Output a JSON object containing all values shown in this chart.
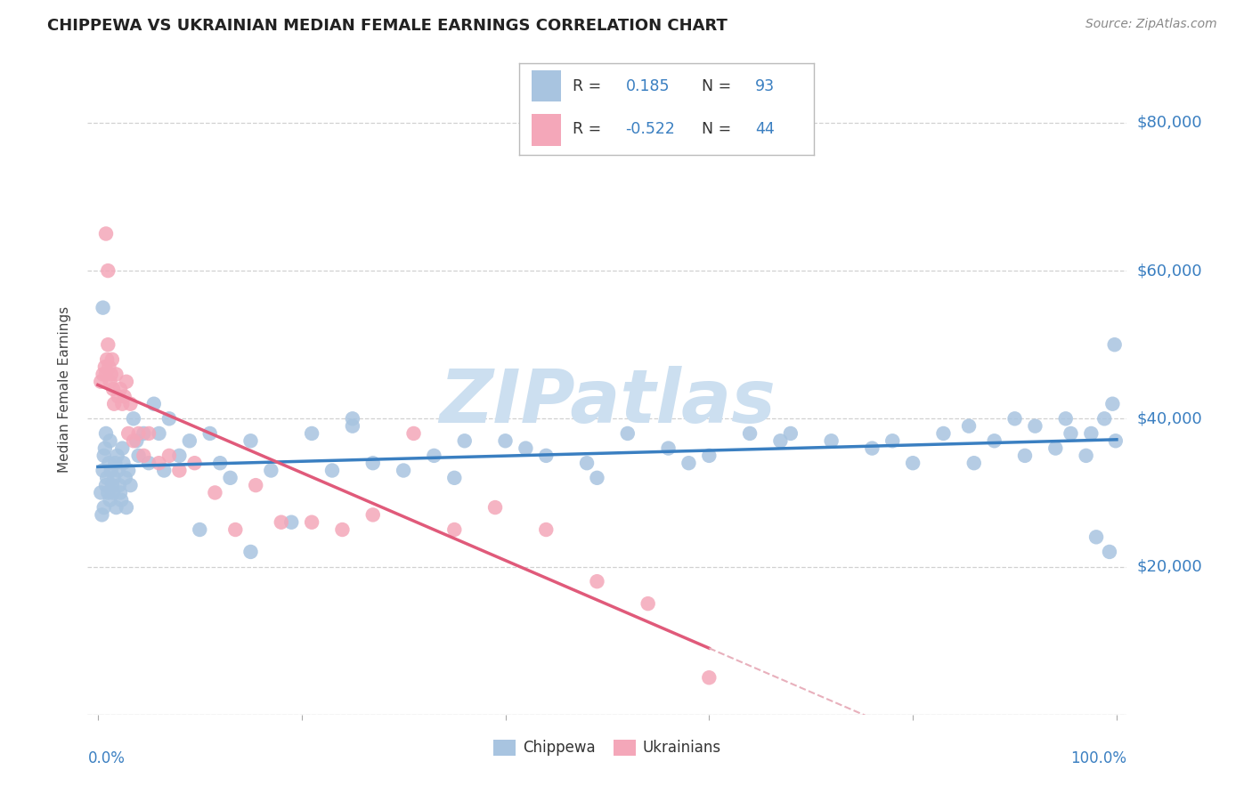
{
  "title": "CHIPPEWA VS UKRAINIAN MEDIAN FEMALE EARNINGS CORRELATION CHART",
  "source": "Source: ZipAtlas.com",
  "ylabel": "Median Female Earnings",
  "y_tick_values": [
    0,
    20000,
    40000,
    60000,
    80000
  ],
  "y_tick_labels": [
    "",
    "$20,000",
    "$40,000",
    "$60,000",
    "$80,000"
  ],
  "xlim": [
    -0.01,
    1.01
  ],
  "ylim": [
    0,
    88000
  ],
  "chippewa_color": "#a8c4e0",
  "ukrainian_color": "#f4a7b9",
  "line_chippewa_color": "#3a7fc1",
  "line_ukrainian_color": "#e05a7a",
  "line_dash_color": "#e8b0bc",
  "grid_color": "#cccccc",
  "watermark_color": "#ccdff0",
  "legend_r1_val": "0.185",
  "legend_n1_val": "93",
  "legend_r2_val": "-0.522",
  "legend_n2_val": "44",
  "r_n_color": "#3a7fc1",
  "chippewa_x": [
    0.003,
    0.004,
    0.005,
    0.006,
    0.006,
    0.007,
    0.008,
    0.008,
    0.009,
    0.01,
    0.011,
    0.012,
    0.012,
    0.013,
    0.014,
    0.015,
    0.016,
    0.017,
    0.018,
    0.019,
    0.02,
    0.021,
    0.022,
    0.023,
    0.024,
    0.025,
    0.027,
    0.028,
    0.03,
    0.032,
    0.035,
    0.038,
    0.04,
    0.045,
    0.05,
    0.055,
    0.06,
    0.065,
    0.07,
    0.08,
    0.09,
    0.1,
    0.11,
    0.12,
    0.13,
    0.15,
    0.17,
    0.19,
    0.21,
    0.23,
    0.25,
    0.27,
    0.3,
    0.33,
    0.36,
    0.4,
    0.44,
    0.48,
    0.52,
    0.56,
    0.6,
    0.64,
    0.68,
    0.72,
    0.76,
    0.8,
    0.83,
    0.86,
    0.88,
    0.9,
    0.92,
    0.94,
    0.955,
    0.97,
    0.98,
    0.988,
    0.993,
    0.996,
    0.998,
    0.999,
    0.35,
    0.42,
    0.49,
    0.25,
    0.15,
    0.58,
    0.67,
    0.78,
    0.855,
    0.91,
    0.95,
    0.975,
    0.005
  ],
  "chippewa_y": [
    30000,
    27000,
    33000,
    35000,
    28000,
    36000,
    31000,
    38000,
    32000,
    30000,
    34000,
    29000,
    37000,
    33000,
    31000,
    30000,
    32000,
    34000,
    28000,
    35000,
    33000,
    31000,
    30000,
    29000,
    36000,
    34000,
    32000,
    28000,
    33000,
    31000,
    40000,
    37000,
    35000,
    38000,
    34000,
    42000,
    38000,
    33000,
    40000,
    35000,
    37000,
    25000,
    38000,
    34000,
    32000,
    37000,
    33000,
    26000,
    38000,
    33000,
    40000,
    34000,
    33000,
    35000,
    37000,
    37000,
    35000,
    34000,
    38000,
    36000,
    35000,
    38000,
    38000,
    37000,
    36000,
    34000,
    38000,
    34000,
    37000,
    40000,
    39000,
    36000,
    38000,
    35000,
    24000,
    40000,
    22000,
    42000,
    50000,
    37000,
    32000,
    36000,
    32000,
    39000,
    22000,
    34000,
    37000,
    37000,
    39000,
    35000,
    40000,
    38000,
    55000
  ],
  "ukrainian_x": [
    0.003,
    0.005,
    0.007,
    0.008,
    0.009,
    0.01,
    0.011,
    0.012,
    0.013,
    0.014,
    0.015,
    0.016,
    0.018,
    0.02,
    0.022,
    0.024,
    0.026,
    0.028,
    0.03,
    0.032,
    0.035,
    0.04,
    0.045,
    0.05,
    0.06,
    0.07,
    0.08,
    0.095,
    0.115,
    0.135,
    0.155,
    0.18,
    0.21,
    0.24,
    0.27,
    0.31,
    0.35,
    0.39,
    0.44,
    0.49,
    0.54,
    0.6,
    0.008,
    0.01
  ],
  "ukrainian_y": [
    45000,
    46000,
    47000,
    46000,
    48000,
    50000,
    47000,
    45000,
    46000,
    48000,
    44000,
    42000,
    46000,
    43000,
    44000,
    42000,
    43000,
    45000,
    38000,
    42000,
    37000,
    38000,
    35000,
    38000,
    34000,
    35000,
    33000,
    34000,
    30000,
    25000,
    31000,
    26000,
    26000,
    25000,
    27000,
    38000,
    25000,
    28000,
    25000,
    18000,
    15000,
    5000,
    65000,
    60000
  ]
}
